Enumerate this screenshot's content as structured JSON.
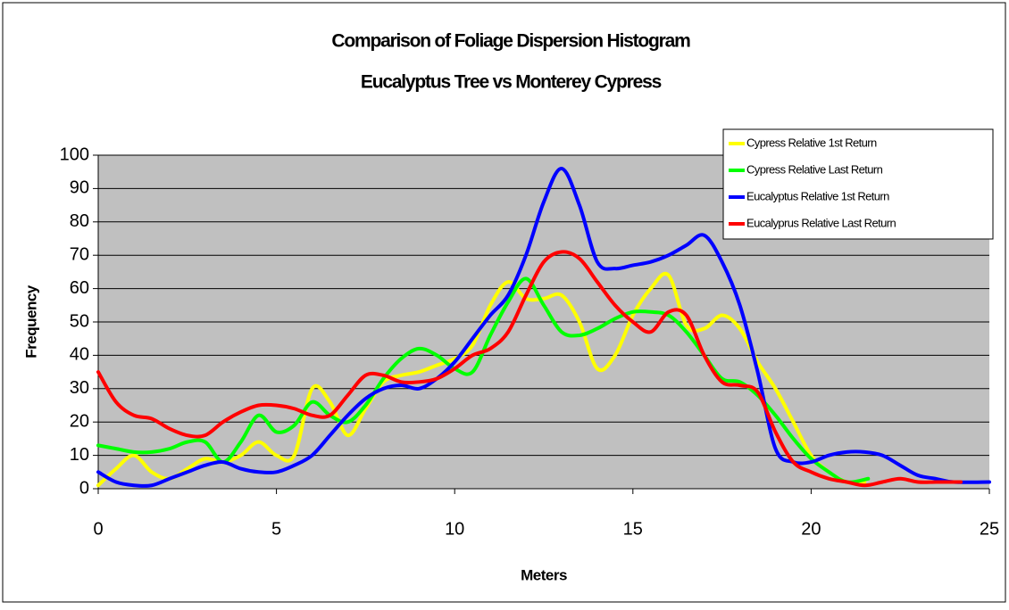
{
  "chart_data": {
    "type": "line",
    "title": "Comparison of Foliage Dispersion Histogram",
    "subtitle": "Eucalyptus Tree vs Monterey Cypress",
    "x_label": "Meters",
    "y_label": "Frequency",
    "xlim": [
      0,
      25
    ],
    "ylim": [
      0,
      100
    ],
    "xticks": [
      0,
      5,
      10,
      15,
      20,
      25
    ],
    "yticks": [
      0,
      10,
      20,
      30,
      40,
      50,
      60,
      70,
      80,
      90,
      100
    ],
    "grid": true,
    "smooth": true,
    "legend": "top-right",
    "series": [
      {
        "name": "Cypress Relative 1st Return",
        "color": "#ffff00",
        "x": [
          0,
          0.5,
          1,
          1.5,
          2,
          2.5,
          3,
          3.5,
          4,
          4.5,
          5,
          5.5,
          6,
          6.5,
          7,
          7.5,
          8,
          8.5,
          9,
          9.5,
          10,
          10.5,
          11,
          11.5,
          12,
          12.5,
          13,
          13.5,
          14,
          14.5,
          15,
          15.5,
          16,
          16.5,
          17,
          17.5,
          18,
          18.5,
          19,
          19.5,
          20,
          20.5,
          21,
          21.5
        ],
        "values": [
          1,
          6,
          10,
          5,
          3,
          6,
          9,
          8,
          10,
          14,
          10,
          10,
          30,
          26,
          16,
          24,
          32,
          34,
          35,
          37,
          39,
          43,
          55,
          62,
          57,
          57,
          58,
          50,
          36,
          40,
          52,
          60,
          64,
          49,
          48,
          52,
          48,
          38,
          30,
          20,
          10,
          5,
          2,
          2
        ]
      },
      {
        "name": "Cypress Relative Last Return",
        "color": "#00ff00",
        "x": [
          0,
          0.5,
          1,
          1.5,
          2,
          2.5,
          3,
          3.5,
          4,
          4.5,
          5,
          5.5,
          6,
          6.5,
          7,
          7.5,
          8,
          8.5,
          9,
          9.5,
          10,
          10.5,
          11,
          11.5,
          12,
          12.5,
          13,
          13.5,
          14,
          14.5,
          15,
          15.5,
          16,
          16.5,
          17,
          17.5,
          18,
          18.5,
          19,
          19.5,
          20,
          20.5,
          21,
          21.6
        ],
        "values": [
          13,
          12,
          11,
          11,
          12,
          14,
          14,
          8,
          14,
          22,
          17,
          19,
          26,
          22,
          20,
          25,
          33,
          39,
          42,
          40,
          36,
          35,
          46,
          56,
          63,
          55,
          47,
          46,
          48,
          51,
          53,
          53,
          52,
          47,
          40,
          33,
          32,
          28,
          22,
          15,
          9,
          5,
          2,
          3
        ]
      },
      {
        "name": "Eucalyptus Relative 1st Return",
        "color": "#0000ff",
        "x": [
          0,
          0.5,
          1,
          1.5,
          2,
          2.5,
          3,
          3.5,
          4,
          4.5,
          5,
          5.5,
          6,
          6.5,
          7,
          7.5,
          8,
          8.5,
          9,
          9.5,
          10,
          10.5,
          11,
          11.5,
          12,
          12.5,
          13,
          13.5,
          14,
          14.5,
          15,
          15.5,
          16,
          16.5,
          17,
          17.5,
          18,
          18.5,
          19,
          19.5,
          20,
          20.5,
          21,
          21.5,
          22,
          22.5,
          23,
          23.5,
          24,
          25
        ],
        "values": [
          5,
          2,
          1,
          1,
          3,
          5,
          7,
          8,
          6,
          5,
          5,
          7,
          10,
          16,
          22,
          27,
          30,
          31,
          30,
          33,
          38,
          45,
          52,
          58,
          70,
          86,
          96,
          85,
          68,
          66,
          67,
          68,
          70,
          73,
          76,
          68,
          55,
          35,
          12,
          8,
          8,
          10,
          11,
          11,
          10,
          7,
          4,
          3,
          2,
          2
        ]
      },
      {
        "name": "Eucalyprus Relative Last Return",
        "color": "#ff0000",
        "x": [
          0,
          0.5,
          1,
          1.5,
          2,
          2.5,
          3,
          3.5,
          4,
          4.5,
          5,
          5.5,
          6,
          6.5,
          7,
          7.5,
          8,
          8.5,
          9,
          9.5,
          10,
          10.5,
          11,
          11.5,
          12,
          12.5,
          13,
          13.5,
          14,
          14.5,
          15,
          15.5,
          16,
          16.5,
          17,
          17.5,
          18,
          18.5,
          19,
          19.5,
          20,
          20.5,
          21,
          21.5,
          22,
          22.5,
          23,
          23.5,
          24,
          24.2
        ],
        "values": [
          35,
          26,
          22,
          21,
          18,
          16,
          16,
          20,
          23,
          25,
          25,
          24,
          22,
          22,
          28,
          34,
          34,
          32,
          32,
          33,
          36,
          40,
          42,
          47,
          58,
          68,
          71,
          69,
          62,
          55,
          50,
          47,
          53,
          52,
          40,
          32,
          31,
          29,
          17,
          8,
          5,
          3,
          2,
          1,
          2,
          3,
          2,
          2,
          2,
          2
        ]
      }
    ]
  }
}
